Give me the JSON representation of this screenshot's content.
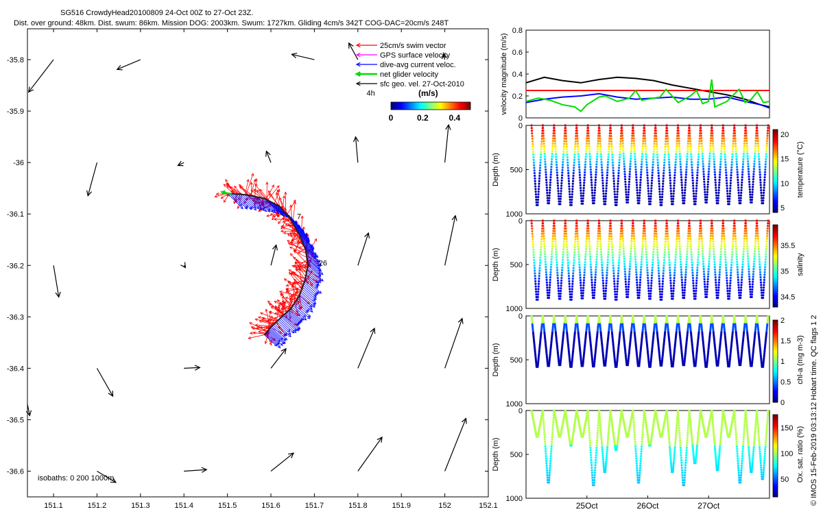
{
  "title": {
    "line1": "SG516 CrowdyHead20100809 24-Oct 00Z to 27-Oct 23Z.",
    "line2": "Dist. over ground: 48km. Dist. swum: 86km. Mission DOG: 2003km. Swum: 1727km. Gliding 4cm/s 342T COG-DAC=20cm/s 248T"
  },
  "copyright": "© IMOS 15-Feb-2019 03:13:12 Hobart time. QC flags 1  2",
  "chart_data": [
    {
      "type": "scatter",
      "name": "map",
      "xlabel": "",
      "ylabel": "",
      "xlim": [
        151.04,
        152.1
      ],
      "ylim": [
        -36.65,
        -35.74
      ],
      "xticks": [
        151.1,
        151.2,
        151.3,
        151.4,
        151.5,
        151.6,
        151.7,
        151.8,
        151.9,
        152,
        152.1
      ],
      "xtick_labels": [
        "151.1",
        "151.2",
        "151.3",
        "151.4",
        "151.5",
        "151.6",
        "151.7",
        "151.8",
        "151.9",
        "152",
        "152.1"
      ],
      "yticks": [
        -35.8,
        -35.9,
        -36,
        -36.1,
        -36.2,
        -36.3,
        -36.4,
        -36.5,
        -36.6
      ],
      "ytick_labels": [
        "-35.8",
        "-35.9",
        "-36",
        "-36.1",
        "-36.2",
        "-36.3",
        "-36.4",
        "-36.5",
        "-36.6"
      ],
      "legend": [
        {
          "label": "25cm/s swim vector",
          "color": "#ff0000"
        },
        {
          "label": "GPS surface velocity",
          "color": "#ff00ff"
        },
        {
          "label": "dive-avg current veloc.",
          "color": "#0000ff"
        },
        {
          "label": "net glider velocity",
          "color": "#00dd00"
        },
        {
          "label": "sfc geo. vel. 27-Oct-2010",
          "color": "#000000"
        }
      ],
      "legend_position": "top-right",
      "colorbar": {
        "label": "(m/s)",
        "ticks": [
          "0",
          "0.2",
          "0.4"
        ],
        "range": [
          0,
          0.5
        ]
      },
      "time_markers": [
        {
          "label": "4h",
          "lon": 151.82,
          "lat": -35.87
        },
        {
          "label": "7",
          "lon": 151.66,
          "lat": -36.11
        },
        {
          "label": "26",
          "lon": 151.71,
          "lat": -36.2
        }
      ],
      "isobath_note": "isobaths: 0   200   1000m",
      "track": [
        [
          151.5,
          -36.06
        ],
        [
          151.545,
          -36.063
        ],
        [
          151.585,
          -36.07
        ],
        [
          151.62,
          -36.085
        ],
        [
          151.645,
          -36.11
        ],
        [
          151.665,
          -36.14
        ],
        [
          151.68,
          -36.17
        ],
        [
          151.685,
          -36.2
        ],
        [
          151.678,
          -36.23
        ],
        [
          151.665,
          -36.26
        ],
        [
          151.645,
          -36.285
        ],
        [
          151.625,
          -36.3
        ],
        [
          151.6,
          -36.32
        ],
        [
          151.585,
          -36.335
        ]
      ],
      "geo_vectors": [
        {
          "lon": 151.1,
          "lat": -35.8,
          "u": -0.33,
          "v": -0.43
        },
        {
          "lon": 151.3,
          "lat": -35.8,
          "u": -0.31,
          "v": -0.13
        },
        {
          "lon": 151.7,
          "lat": -35.8,
          "u": -0.3,
          "v": 0.07
        },
        {
          "lon": 151.8,
          "lat": -35.8,
          "u": -0.12,
          "v": 0.22
        },
        {
          "lon": 152.0,
          "lat": -35.8,
          "u": -0.02,
          "v": 0.08
        },
        {
          "lon": 151.2,
          "lat": -36.0,
          "u": -0.12,
          "v": -0.44
        },
        {
          "lon": 151.4,
          "lat": -36.0,
          "u": -0.08,
          "v": -0.04
        },
        {
          "lon": 151.6,
          "lat": -36.0,
          "u": -0.06,
          "v": 0.15
        },
        {
          "lon": 151.8,
          "lat": -36.0,
          "u": -0.03,
          "v": 0.34
        },
        {
          "lon": 152.0,
          "lat": -36.0,
          "u": 0.05,
          "v": 0.5
        },
        {
          "lon": 151.6,
          "lat": -36.2,
          "u": 0.07,
          "v": 0.27
        },
        {
          "lon": 151.8,
          "lat": -36.2,
          "u": 0.14,
          "v": 0.43
        },
        {
          "lon": 152.0,
          "lat": -36.2,
          "u": 0.14,
          "v": 0.66
        },
        {
          "lon": 151.1,
          "lat": -36.2,
          "u": 0.07,
          "v": -0.42
        },
        {
          "lon": 151.4,
          "lat": -36.2,
          "u": 0.02,
          "v": -0.03
        },
        {
          "lon": 151.2,
          "lat": -36.4,
          "u": 0.21,
          "v": -0.37
        },
        {
          "lon": 151.4,
          "lat": -36.4,
          "u": 0.21,
          "v": 0.01
        },
        {
          "lon": 151.6,
          "lat": -36.4,
          "u": 0.2,
          "v": 0.26
        },
        {
          "lon": 151.8,
          "lat": -36.4,
          "u": 0.22,
          "v": 0.53
        },
        {
          "lon": 152.0,
          "lat": -36.4,
          "u": 0.23,
          "v": 0.66
        },
        {
          "lon": 151.04,
          "lat": -36.47,
          "u": 0.03,
          "v": -0.15
        },
        {
          "lon": 151.4,
          "lat": -36.6,
          "u": 0.3,
          "v": 0.02
        },
        {
          "lon": 151.6,
          "lat": -36.6,
          "u": 0.3,
          "v": 0.24
        },
        {
          "lon": 151.8,
          "lat": -36.6,
          "u": 0.32,
          "v": 0.45
        },
        {
          "lon": 152.0,
          "lat": -36.6,
          "u": 0.28,
          "v": 0.7
        },
        {
          "lon": 151.2,
          "lat": -36.6,
          "u": 0.25,
          "v": -0.15
        }
      ]
    },
    {
      "type": "line",
      "name": "velocity",
      "ylabel": "velocity magnitude (m/s)",
      "xlim": [
        0,
        4
      ],
      "ylim": [
        0,
        0.8
      ],
      "yticks": [
        0,
        0.2,
        0.4,
        0.6,
        0.8
      ],
      "ytick_labels": [
        "0",
        "0.2",
        "0.4",
        "0.6",
        "0.8"
      ],
      "series": [
        {
          "name": "sfc geo. vel.",
          "color": "#000000",
          "x": [
            0,
            0.3,
            0.6,
            0.9,
            1.2,
            1.5,
            1.8,
            2.1,
            2.4,
            2.7,
            3.0,
            3.3,
            3.6,
            3.85,
            4.0
          ],
          "y": [
            0.32,
            0.37,
            0.34,
            0.32,
            0.35,
            0.37,
            0.36,
            0.34,
            0.3,
            0.27,
            0.24,
            0.21,
            0.17,
            0.12,
            0.1
          ]
        },
        {
          "name": "swim 25cm/s",
          "color": "#ff0000",
          "x": [
            0,
            4
          ],
          "y": [
            0.25,
            0.25
          ]
        },
        {
          "name": "dive-avg current",
          "color": "#0000ff",
          "x": [
            0,
            0.3,
            0.6,
            0.9,
            1.2,
            1.5,
            1.8,
            2.1,
            2.4,
            2.7,
            3.0,
            3.3,
            3.6,
            3.85,
            4.0
          ],
          "y": [
            0.14,
            0.17,
            0.19,
            0.2,
            0.22,
            0.19,
            0.17,
            0.18,
            0.19,
            0.17,
            0.17,
            0.19,
            0.15,
            0.12,
            0.09
          ]
        },
        {
          "name": "net glider",
          "color": "#00dd00",
          "x": [
            0,
            0.2,
            0.4,
            0.6,
            0.8,
            0.9,
            1.0,
            1.2,
            1.3,
            1.5,
            1.7,
            1.8,
            1.9,
            2.2,
            2.3,
            2.5,
            2.7,
            2.8,
            2.9,
            3.0,
            3.05,
            3.1,
            3.3,
            3.5,
            3.6,
            3.7,
            3.8,
            3.9,
            4.0
          ],
          "y": [
            0.15,
            0.18,
            0.16,
            0.12,
            0.1,
            0.06,
            0.12,
            0.19,
            0.2,
            0.15,
            0.18,
            0.25,
            0.16,
            0.19,
            0.26,
            0.14,
            0.2,
            0.25,
            0.13,
            0.15,
            0.35,
            0.1,
            0.15,
            0.26,
            0.14,
            0.17,
            0.24,
            0.14,
            0.15
          ]
        }
      ]
    },
    {
      "type": "scatter",
      "name": "temperature",
      "ylabel": "Depth (m)",
      "ylim": [
        1000,
        0
      ],
      "yticks": [
        0,
        500,
        1000
      ],
      "ytick_labels": [
        "0",
        "500",
        "1000"
      ],
      "colorbar": {
        "label": "temperature (°C)",
        "range": [
          4,
          21
        ],
        "ticks": [
          "5",
          "10",
          "15",
          "20"
        ],
        "tick_values": [
          5,
          10,
          15,
          20
        ]
      },
      "profiles": {
        "n": 21,
        "max_depth": [
          900,
          880,
          890,
          900,
          885,
          880,
          890,
          900,
          870,
          880,
          890,
          900,
          890,
          880,
          890,
          870,
          880,
          890,
          880,
          870,
          880
        ]
      }
    },
    {
      "type": "scatter",
      "name": "salinity",
      "ylabel": "Depth (m)",
      "ylim": [
        1000,
        0
      ],
      "yticks": [
        0,
        500,
        1000
      ],
      "ytick_labels": [
        "0",
        "500",
        "1000"
      ],
      "colorbar": {
        "label": "salinity",
        "range": [
          34.3,
          35.9
        ],
        "ticks": [
          "34.5",
          "35",
          "35.5"
        ],
        "tick_values": [
          34.5,
          35,
          35.5
        ]
      },
      "profiles": {
        "n": 21,
        "max_depth": [
          900,
          880,
          890,
          900,
          885,
          880,
          890,
          900,
          870,
          880,
          890,
          900,
          890,
          880,
          890,
          870,
          880,
          890,
          880,
          870,
          880
        ]
      }
    },
    {
      "type": "scatter",
      "name": "chl-a",
      "ylabel": "Depth (m)",
      "ylim": [
        1000,
        0
      ],
      "yticks": [
        0,
        500,
        1000
      ],
      "ytick_labels": [
        "0",
        "500",
        "1000"
      ],
      "colorbar": {
        "label": "chl-a (mg m-3)",
        "range": [
          0,
          2
        ],
        "ticks": [
          "0",
          "0.5",
          "1",
          "1.5",
          "2"
        ],
        "tick_values": [
          0,
          0.5,
          1,
          1.5,
          2
        ]
      },
      "profiles": {
        "n": 21,
        "max_depth": [
          580,
          570,
          560,
          580,
          570,
          575,
          565,
          580,
          560,
          570,
          580,
          565,
          575,
          560,
          570,
          580,
          565,
          575,
          560,
          570,
          580
        ]
      }
    },
    {
      "type": "scatter",
      "name": "oxygen",
      "ylabel": "Depth (m)",
      "ylim": [
        1000,
        0
      ],
      "yticks": [
        0,
        500,
        1000
      ],
      "ytick_labels": [
        "0",
        "500",
        "1000"
      ],
      "colorbar": {
        "label": "Ox. sat. ratio (%)",
        "range": [
          15,
          175
        ],
        "ticks": [
          "50",
          "100",
          "150"
        ],
        "tick_values": [
          50,
          100,
          150
        ]
      },
      "xtick_labels": [
        "25Oct",
        "26Oct",
        "27Oct"
      ],
      "xticks_days": [
        1,
        2,
        3
      ],
      "profiles": {
        "n": 21,
        "max_depth": [
          300,
          820,
          300,
          400,
          300,
          850,
          700,
          450,
          300,
          820,
          400,
          300,
          700,
          850,
          600,
          300,
          680,
          300,
          820,
          700,
          780
        ]
      }
    }
  ]
}
